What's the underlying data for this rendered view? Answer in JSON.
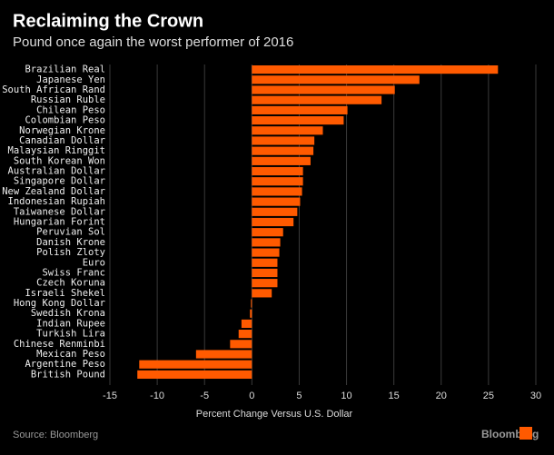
{
  "chart_data": {
    "type": "bar",
    "orientation": "horizontal",
    "title": "Reclaiming the Crown",
    "subtitle": "Pound once again the worst performer of 2016",
    "categories": [
      "Brazilian Real",
      "Japanese Yen",
      "South African Rand",
      "Russian Ruble",
      "Chilean Peso",
      "Colombian Peso",
      "Norwegian Krone",
      "Canadian Dollar",
      "Malaysian Ringgit",
      "South Korean Won",
      "Australian Dollar",
      "Singapore Dollar",
      "New Zealand Dollar",
      "Indonesian Rupiah",
      "Taiwanese Dollar",
      "Hungarian Forint",
      "Peruvian Sol",
      "Danish Krone",
      "Polish Zloty",
      "Euro",
      "Swiss Franc",
      "Czech Koruna",
      "Israeli Shekel",
      "Hong Kong Dollar",
      "Swedish Krona",
      "Indian Rupee",
      "Turkish Lira",
      "Chinese Renminbi",
      "Mexican Peso",
      "Argentine Peso",
      "British Pound"
    ],
    "values": [
      26.0,
      17.7,
      15.1,
      13.7,
      10.1,
      9.7,
      7.5,
      6.6,
      6.5,
      6.2,
      5.4,
      5.4,
      5.3,
      5.1,
      4.8,
      4.4,
      3.3,
      3.0,
      2.9,
      2.7,
      2.7,
      2.7,
      2.1,
      -0.1,
      -0.2,
      -1.1,
      -1.4,
      -2.3,
      -5.9,
      -11.9,
      -12.1
    ],
    "color": "#ff5a00",
    "xlim": [
      -15,
      30
    ],
    "xticks": [
      -15,
      -10,
      -5,
      0,
      5,
      10,
      15,
      20,
      25,
      30
    ],
    "grid": true,
    "xlabel": "Percent Change Versus U.S. Dollar",
    "source": "Source: Bloomberg",
    "brand": "Bloomberg"
  }
}
